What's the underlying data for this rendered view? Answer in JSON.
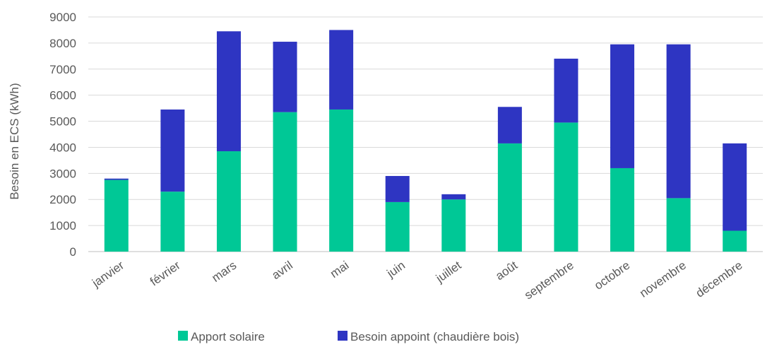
{
  "chart_data": {
    "type": "bar",
    "stacked": true,
    "title": "",
    "xlabel": "",
    "ylabel": "Besoin en ECS (kWh)",
    "ylim": [
      0,
      9000
    ],
    "yticks": [
      0,
      1000,
      2000,
      3000,
      4000,
      5000,
      6000,
      7000,
      8000,
      9000
    ],
    "grid": true,
    "legend": "bottom",
    "categories": [
      "janvier",
      "février",
      "mars",
      "avril",
      "mai",
      "juin",
      "juillet",
      "août",
      "septembre",
      "octobre",
      "novembre",
      "décembre"
    ],
    "series": [
      {
        "name": "Apport solaire",
        "color": "#00c896",
        "values": [
          2750,
          2300,
          3850,
          5350,
          5450,
          1900,
          2000,
          4150,
          4950,
          3200,
          2050,
          800
        ]
      },
      {
        "name": "Besoin appoint (chaudière bois)",
        "color": "#2e35c2",
        "values": [
          50,
          3150,
          4600,
          2700,
          3050,
          1000,
          200,
          1400,
          2450,
          4750,
          5900,
          3350
        ]
      }
    ]
  }
}
